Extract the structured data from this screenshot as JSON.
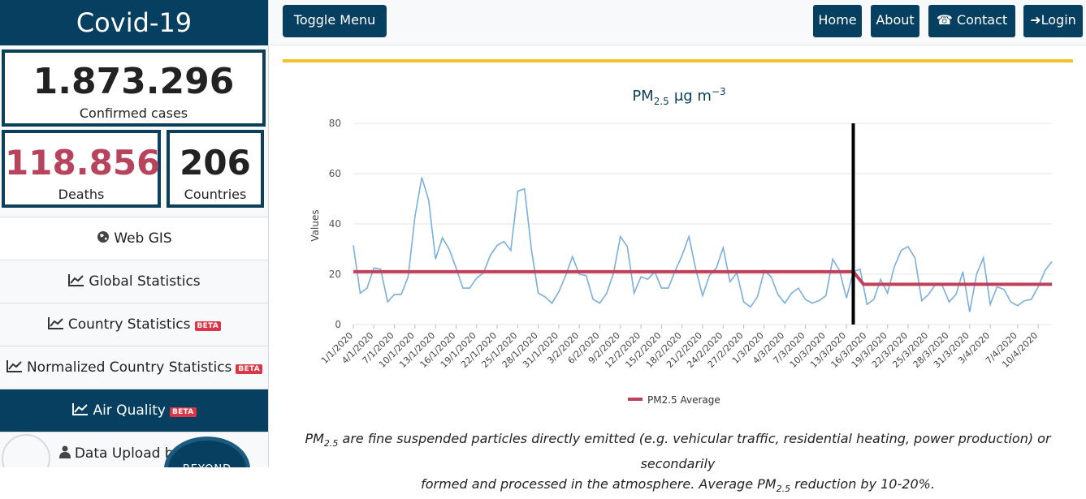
{
  "brand": "Covid-19",
  "stats": {
    "confirmed": {
      "value": "1.873.296",
      "label": "Confirmed cases"
    },
    "deaths": {
      "value": "118.856",
      "label": "Deaths"
    },
    "countries": {
      "value": "206",
      "label": "Countries"
    }
  },
  "nav": [
    {
      "label": "Web GIS",
      "icon": "globe-icon",
      "beta": false
    },
    {
      "label": "Global Statistics",
      "icon": "line-chart-icon",
      "beta": false
    },
    {
      "label": "Country Statistics",
      "icon": "line-chart-icon",
      "beta": true
    },
    {
      "label": "Normalized Country Statistics",
      "icon": "line-chart-icon",
      "beta": true
    },
    {
      "label": "Air Quality",
      "icon": "line-chart-icon",
      "beta": true,
      "active": true
    },
    {
      "label": "Data Upload by Aut",
      "icon": "user-icon",
      "beta": false
    }
  ],
  "beta_label": "BETA",
  "logo_text": "BEYOND",
  "topbar": {
    "toggle": "Toggle Menu",
    "home": "Home",
    "about": "About",
    "contact": "Contact us",
    "login": "Login"
  },
  "colors": {
    "primary": "#063f5f",
    "accent_gold": "#f2c12e",
    "deaths_red": "#b8435d",
    "beta_red": "#dc3545",
    "series_line": "#7aafdb",
    "average_line": "#c0405a"
  },
  "chart_data": {
    "type": "line",
    "title": "PM2.5 μg m−3",
    "ylabel": "Values",
    "ylim": [
      0,
      80
    ],
    "yticks": [
      0,
      20,
      40,
      60,
      80
    ],
    "grid": true,
    "legend": "bottom",
    "xtick_labels": [
      "1/1/2020",
      "4/1/2020",
      "7/1/2020",
      "10/1/2020",
      "13/1/2020",
      "16/1/2020",
      "19/1/2020",
      "22/1/2020",
      "25/1/2020",
      "28/1/2020",
      "31/1/2020",
      "3/2/2020",
      "6/2/2020",
      "9/2/2020",
      "12/2/2020",
      "15/2/2020",
      "18/2/2020",
      "21/2/2020",
      "24/2/2020",
      "27/2/2020",
      "1/3/2020",
      "4/3/2020",
      "7/3/2020",
      "10/3/2020",
      "13/3/2020",
      "16/3/2020",
      "19/3/2020",
      "22/3/2020",
      "25/3/2020",
      "28/3/2020",
      "31/3/2020",
      "3/4/2020",
      "7/4/2020",
      "10/4/2020"
    ],
    "x_start": "1/1/2020",
    "x_end": "12/4/2020",
    "vertical_marker": "14/3/2020",
    "series": [
      {
        "values": [
          31.5,
          12.5,
          14.5,
          22.5,
          22,
          9,
          12,
          12,
          19,
          43,
          58.5,
          49.5,
          26,
          34.5,
          30,
          22.5,
          14.5,
          14.5,
          18.5,
          20.5,
          27.5,
          31.5,
          33,
          29.5,
          53,
          54,
          30,
          12.5,
          11,
          8.5,
          13,
          19.5,
          27,
          20,
          19.5,
          10,
          8.5,
          12.5,
          20.5,
          35,
          31,
          12.5,
          19,
          18,
          21,
          14.5,
          14.5,
          21.5,
          27.5,
          35,
          22,
          11.5,
          19.5,
          22.5,
          30.5,
          17,
          20.5,
          9,
          7,
          11,
          21.5,
          19,
          12,
          8.5,
          12.5,
          14.5,
          10,
          8.5,
          9.5,
          11.5,
          26,
          21.5,
          10.5,
          21,
          22,
          8,
          10,
          18,
          12.5,
          23,
          29.5,
          31,
          26.5,
          9.5,
          12,
          16,
          15.5,
          9,
          12,
          21,
          5,
          20,
          26.5,
          8,
          15,
          14,
          9,
          7.5,
          9.5,
          10,
          15,
          21.5,
          25
        ]
      },
      {
        "name": "PM2.5 Average",
        "values": [
          [
            1,
            21
          ],
          [
            74,
            21
          ],
          [
            75.5,
            16
          ],
          [
            103,
            16
          ]
        ]
      }
    ]
  },
  "caption": {
    "line1_pm": "PM",
    "line1_sub": "2.5",
    "line1": " are fine suspended particles directly emitted (e.g. vehicular traffic, residential heating, power production) or secondarily",
    "line2": "formed and processed in the atmosphere. Average PM",
    "line2_sub": "2.5",
    "line2_end": " reduction by 10-20%."
  }
}
